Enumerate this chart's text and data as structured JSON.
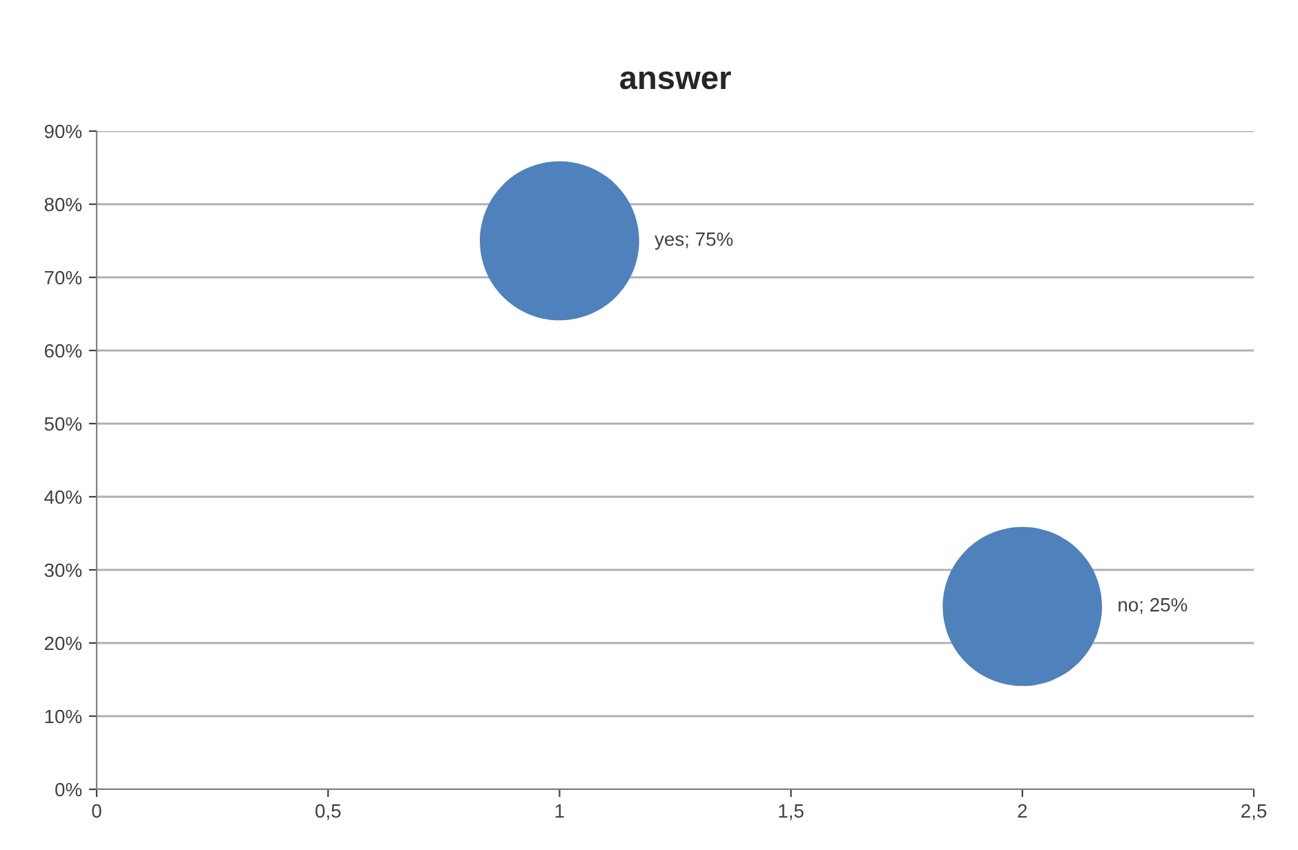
{
  "chart_data": {
    "type": "bubble",
    "title": "answer",
    "x": [
      1,
      2
    ],
    "series": [
      {
        "color": "#4f81bd",
        "values": [
          75,
          25
        ],
        "sizes": [
          1,
          1
        ],
        "value_labels": [
          "yes; 75%",
          "no; 25%"
        ]
      }
    ],
    "xlim": [
      0,
      2.5
    ],
    "xticks": [
      0,
      {
        "value": 0.5,
        "label": "0,5"
      },
      1,
      {
        "value": 1.5,
        "label": "1,5"
      },
      2,
      {
        "value": 2.5,
        "label": "2,5"
      }
    ],
    "ylim": [
      0,
      90
    ],
    "yticks": [
      {
        "value": 0,
        "label": "0%"
      },
      {
        "value": 10,
        "label": "10%"
      },
      {
        "value": 20,
        "label": "20%"
      },
      {
        "value": 30,
        "label": "30%"
      },
      {
        "value": 40,
        "label": "40%"
      },
      {
        "value": 50,
        "label": "50%"
      },
      {
        "value": 60,
        "label": "60%"
      },
      {
        "value": 70,
        "label": "70%"
      },
      {
        "value": 80,
        "label": "80%"
      },
      {
        "value": 90,
        "label": "90%"
      }
    ],
    "grid": "y"
  }
}
